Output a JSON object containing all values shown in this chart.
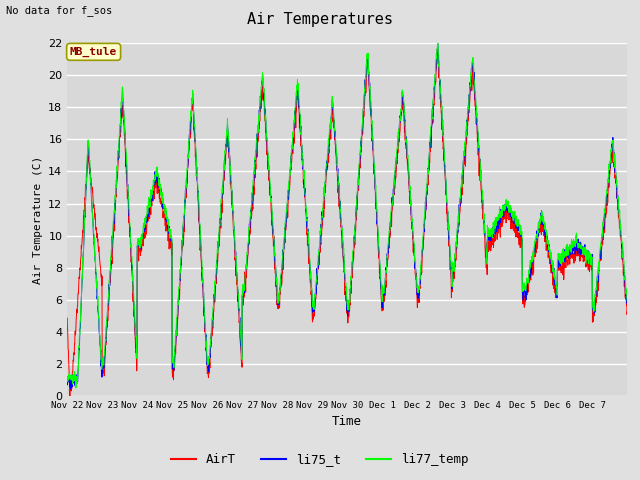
{
  "title": "Air Temperatures",
  "ylabel": "Air Temperature (C)",
  "xlabel": "Time",
  "annotation_text": "No data for f_sos",
  "legend_box_text": "MB_tule",
  "ylim": [
    0,
    22
  ],
  "fig_facecolor": "#e0e0e0",
  "plot_facecolor": "#d8d8d8",
  "series": [
    "AirT",
    "li75_t",
    "li77_temp"
  ],
  "colors": [
    "red",
    "blue",
    "lime"
  ],
  "tick_labels": [
    "Nov 22",
    "Nov 23",
    "Nov 24",
    "Nov 25",
    "Nov 26",
    "Nov 27",
    "Nov 28",
    "Nov 29",
    "Nov 30",
    "Dec 1",
    "Dec 2",
    "Dec 3",
    "Dec 4",
    "Dec 5",
    "Dec 6",
    "Dec 7"
  ],
  "yticks": [
    0,
    2,
    4,
    6,
    8,
    10,
    12,
    14,
    16,
    18,
    20,
    22
  ]
}
